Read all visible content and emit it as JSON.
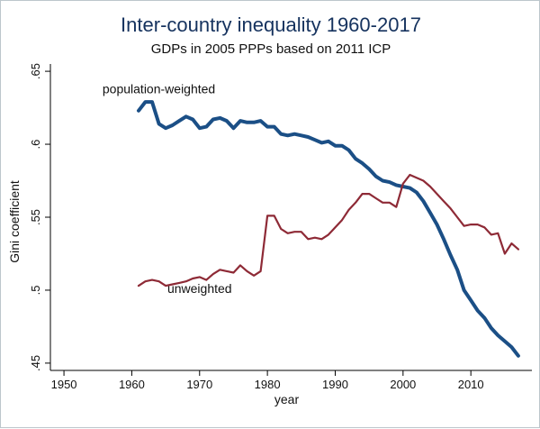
{
  "chart_data": {
    "type": "line",
    "title": "Inter-country inequality 1960-2017",
    "subtitle": "GDPs in 2005 PPPs based on 2011 ICP",
    "xlabel": "year",
    "ylabel": "Gini coefficient",
    "xlim": [
      1948,
      2019
    ],
    "ylim": [
      0.445,
      0.655
    ],
    "x_ticks": [
      1950,
      1960,
      1970,
      1980,
      1990,
      2000,
      2010
    ],
    "x_tick_labels": [
      "1950",
      "1960",
      "1970",
      "1980",
      "1990",
      "2000",
      "2010"
    ],
    "y_ticks": [
      0.45,
      0.5,
      0.55,
      0.6,
      0.65
    ],
    "y_tick_labels": [
      ".45",
      ".5",
      ".55",
      ".6",
      ".65"
    ],
    "grid": false,
    "series": [
      {
        "name": "population-weighted",
        "color": "#1b4f86",
        "x": [
          1961,
          1962,
          1963,
          1964,
          1965,
          1966,
          1967,
          1968,
          1969,
          1970,
          1971,
          1972,
          1973,
          1974,
          1975,
          1976,
          1977,
          1978,
          1979,
          1980,
          1981,
          1982,
          1983,
          1984,
          1985,
          1986,
          1987,
          1988,
          1989,
          1990,
          1991,
          1992,
          1993,
          1994,
          1995,
          1996,
          1997,
          1998,
          1999,
          2000,
          2001,
          2002,
          2003,
          2004,
          2005,
          2006,
          2007,
          2008,
          2009,
          2010,
          2011,
          2012,
          2013,
          2014,
          2015,
          2016,
          2017
        ],
        "y": [
          0.623,
          0.629,
          0.629,
          0.614,
          0.611,
          0.613,
          0.616,
          0.619,
          0.617,
          0.611,
          0.612,
          0.617,
          0.618,
          0.616,
          0.611,
          0.616,
          0.615,
          0.615,
          0.616,
          0.612,
          0.612,
          0.607,
          0.606,
          0.607,
          0.606,
          0.605,
          0.603,
          0.601,
          0.602,
          0.599,
          0.599,
          0.596,
          0.59,
          0.587,
          0.583,
          0.578,
          0.575,
          0.574,
          0.572,
          0.571,
          0.57,
          0.567,
          0.561,
          0.553,
          0.545,
          0.535,
          0.524,
          0.514,
          0.5,
          0.493,
          0.486,
          0.481,
          0.474,
          0.469,
          0.465,
          0.461,
          0.455
        ]
      },
      {
        "name": "unweighted",
        "color": "#8e2a36",
        "x": [
          1961,
          1962,
          1963,
          1964,
          1965,
          1966,
          1967,
          1968,
          1969,
          1970,
          1971,
          1972,
          1973,
          1974,
          1975,
          1976,
          1977,
          1978,
          1979,
          1980,
          1981,
          1982,
          1983,
          1984,
          1985,
          1986,
          1987,
          1988,
          1989,
          1990,
          1991,
          1992,
          1993,
          1994,
          1995,
          1996,
          1997,
          1998,
          1999,
          2000,
          2001,
          2002,
          2003,
          2004,
          2005,
          2006,
          2007,
          2008,
          2009,
          2010,
          2011,
          2012,
          2013,
          2014,
          2015,
          2016,
          2017
        ],
        "y": [
          0.503,
          0.506,
          0.507,
          0.506,
          0.503,
          0.504,
          0.505,
          0.506,
          0.508,
          0.509,
          0.507,
          0.511,
          0.514,
          0.513,
          0.512,
          0.517,
          0.513,
          0.51,
          0.513,
          0.551,
          0.551,
          0.542,
          0.539,
          0.54,
          0.54,
          0.535,
          0.536,
          0.535,
          0.538,
          0.543,
          0.548,
          0.555,
          0.56,
          0.566,
          0.566,
          0.563,
          0.56,
          0.56,
          0.557,
          0.573,
          0.579,
          0.577,
          0.575,
          0.571,
          0.566,
          0.561,
          0.556,
          0.55,
          0.544,
          0.545,
          0.545,
          0.543,
          0.538,
          0.539,
          0.525,
          0.532,
          0.528
        ]
      }
    ],
    "annotations": [
      {
        "text": "population-weighted",
        "x": 1964,
        "y": 0.635
      },
      {
        "text": "unweighted",
        "x": 1970,
        "y": 0.498
      }
    ]
  }
}
